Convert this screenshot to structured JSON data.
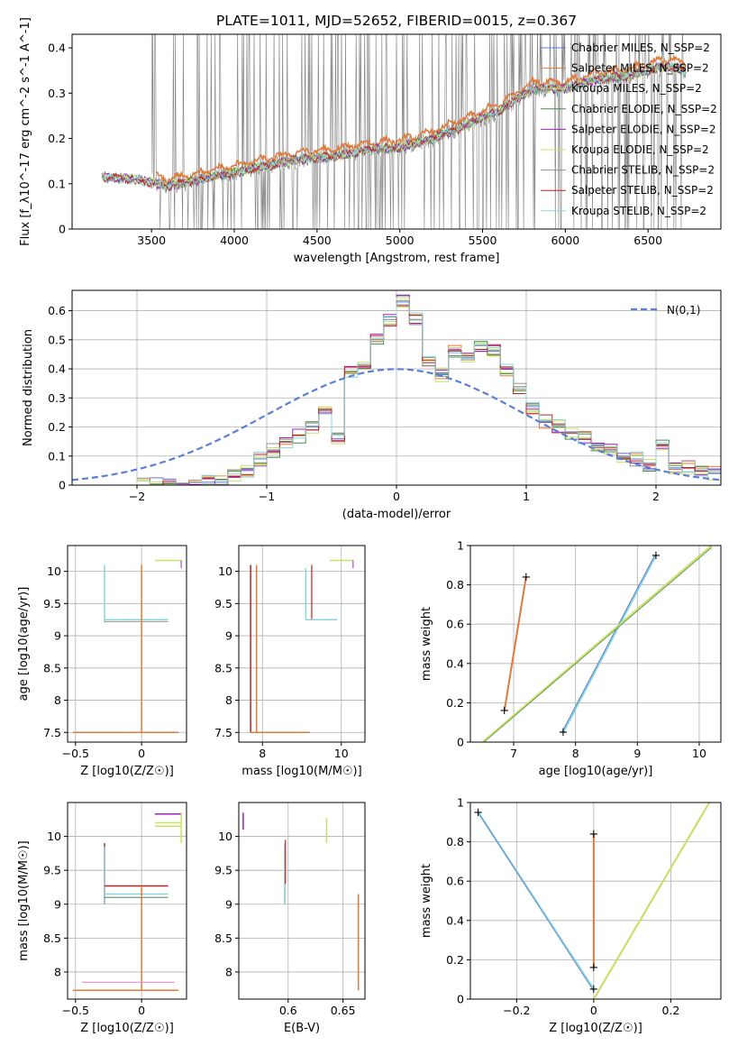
{
  "title": "PLATE=1011, MJD=52652, FIBERID=0015, z=0.367",
  "colors": {
    "Chabrier MILES": "#5b7fd6",
    "Salpeter MILES": "#e07a3c",
    "Kroupa MILES": "#c8e06a",
    "Chabrier ELODIE": "#4a8a4a",
    "Salpeter ELODIE": "#a020c0",
    "Kroupa ELODIE": "#c8e06a",
    "Chabrier STELIB": "#909090",
    "Salpeter STELIB": "#c02020",
    "Kroupa STELIB": "#8cd4d8",
    "data": "#808080",
    "normal": "#5b7fd6"
  },
  "chart_data": [
    {
      "type": "line",
      "panel": "spectrum",
      "xlabel": "wavelength [Angstrom, rest frame]",
      "ylabel": "Flux [f_λ10^-17 erg cm^-2 s^-1 A^-1]",
      "xlim": [
        3020,
        6940
      ],
      "ylim": [
        0,
        0.43
      ],
      "xticks": [
        3500,
        4000,
        4500,
        5000,
        5500,
        6000,
        6500
      ],
      "yticks": [
        0.0,
        0.1,
        0.2,
        0.3,
        0.4
      ],
      "legend_position": "top-right",
      "legend": [
        "Chabrier MILES, N_SSP=2",
        "Salpeter MILES, N_SSP=2",
        "Kroupa MILES, N_SSP=2",
        "Chabrier ELODIE, N_SSP=2",
        "Salpeter ELODIE, N_SSP=2",
        "Kroupa ELODIE, N_SSP=2",
        "Chabrier STELIB, N_SSP=2",
        "Salpeter STELIB, N_SSP=2",
        "Kroupa STELIB, N_SSP=2"
      ],
      "data_range": [
        3500,
        6730
      ],
      "model_continuum": {
        "x": [
          3200,
          3400,
          3600,
          3800,
          4000,
          4200,
          4400,
          4600,
          4800,
          5000,
          5200,
          5400,
          5600,
          5800,
          6000,
          6200,
          6400,
          6600,
          6730
        ],
        "y": [
          0.115,
          0.11,
          0.095,
          0.11,
          0.125,
          0.14,
          0.155,
          0.16,
          0.175,
          0.18,
          0.2,
          0.23,
          0.26,
          0.31,
          0.31,
          0.33,
          0.34,
          0.36,
          0.35
        ]
      }
    },
    {
      "type": "line",
      "panel": "residual histogram",
      "xlabel": "(data-model)/error",
      "ylabel": "Normed distribution",
      "xlim": [
        -2.5,
        2.5
      ],
      "ylim": [
        0,
        0.67
      ],
      "xticks": [
        -2,
        -1,
        0,
        1,
        2
      ],
      "yticks": [
        0.0,
        0.1,
        0.2,
        0.3,
        0.4,
        0.5,
        0.6
      ],
      "legend_position": "top-right",
      "legend": [
        "N(0,1)"
      ],
      "bin_edges": [
        -2.0,
        -1.9,
        -1.8,
        -1.7,
        -1.6,
        -1.5,
        -1.4,
        -1.3,
        -1.2,
        -1.1,
        -1.0,
        -0.9,
        -0.8,
        -0.7,
        -0.6,
        -0.5,
        -0.4,
        -0.3,
        -0.2,
        -0.1,
        0.0,
        0.1,
        0.2,
        0.3,
        0.4,
        0.5,
        0.6,
        0.7,
        0.8,
        0.9,
        1.0,
        1.1,
        1.2,
        1.3,
        1.4,
        1.5,
        1.6,
        1.7,
        1.8,
        1.9,
        2.0,
        2.1,
        2.2,
        2.3,
        2.4,
        2.5
      ],
      "counts": [
        0.0,
        0.0,
        0.0,
        0.0,
        0.0,
        0.01,
        0.01,
        0.03,
        0.05,
        0.09,
        0.12,
        0.15,
        0.17,
        0.2,
        0.26,
        0.16,
        0.39,
        0.4,
        0.5,
        0.57,
        0.63,
        0.57,
        0.42,
        0.38,
        0.46,
        0.44,
        0.48,
        0.46,
        0.4,
        0.33,
        0.27,
        0.22,
        0.2,
        0.18,
        0.16,
        0.14,
        0.12,
        0.1,
        0.09,
        0.07,
        0.14,
        0.06,
        0.06,
        0.05,
        0.04,
        0.04
      ]
    },
    {
      "type": "scatter",
      "panel": "age vs Z",
      "xlabel": "Z [log10(Z/Z☉)]",
      "ylabel": "age [log10(age/yr)]",
      "xlim": [
        -0.56,
        0.34
      ],
      "ylim": [
        7.35,
        10.4
      ],
      "xticks": [
        -0.5,
        0.0
      ],
      "yticks": [
        7.5,
        8.0,
        8.5,
        9.0,
        9.5,
        10.0
      ]
    },
    {
      "type": "scatter",
      "panel": "age vs mass",
      "xlabel": "mass [log10(M/M☉)]",
      "ylabel": "",
      "xlim": [
        7.4,
        10.6
      ],
      "ylim": [
        7.35,
        10.4
      ],
      "xticks": [
        8,
        10
      ],
      "yticks": [
        7.5,
        8.0,
        8.5,
        9.0,
        9.5,
        10.0
      ]
    },
    {
      "type": "line",
      "panel": "mass weight vs age",
      "xlabel": "age [log10(age/yr)]",
      "ylabel": "mass weight",
      "xlim": [
        6.3,
        10.35
      ],
      "ylim": [
        0,
        1
      ],
      "xticks": [
        7,
        8,
        9,
        10
      ],
      "yticks": [
        0.0,
        0.2,
        0.4,
        0.6,
        0.8,
        1.0
      ]
    },
    {
      "type": "scatter",
      "panel": "mass vs Z",
      "xlabel": "Z [log10(Z/Z☉)]",
      "ylabel": "mass [log10(M/M☉)]",
      "xlim": [
        -0.56,
        0.34
      ],
      "ylim": [
        7.6,
        10.5
      ],
      "xticks": [
        -0.5,
        0.0
      ],
      "yticks": [
        8.0,
        8.5,
        9.0,
        9.5,
        10.0
      ]
    },
    {
      "type": "scatter",
      "panel": "mass vs E(B-V)",
      "xlabel": "E(B-V)",
      "ylabel": "",
      "xlim": [
        0.555,
        0.67
      ],
      "ylim": [
        7.6,
        10.5
      ],
      "xticks": [
        0.6,
        0.65
      ],
      "yticks": [
        8.0,
        8.5,
        9.0,
        9.5,
        10.0
      ]
    },
    {
      "type": "line",
      "panel": "mass weight vs Z",
      "xlabel": "Z [log10(Z/Z☉)]",
      "ylabel": "mass weight",
      "xlim": [
        -0.32,
        0.33
      ],
      "ylim": [
        0,
        1
      ],
      "xticks": [
        -0.2,
        0.0,
        0.2
      ],
      "yticks": [
        0.0,
        0.2,
        0.4,
        0.6,
        0.8,
        1.0
      ]
    }
  ]
}
